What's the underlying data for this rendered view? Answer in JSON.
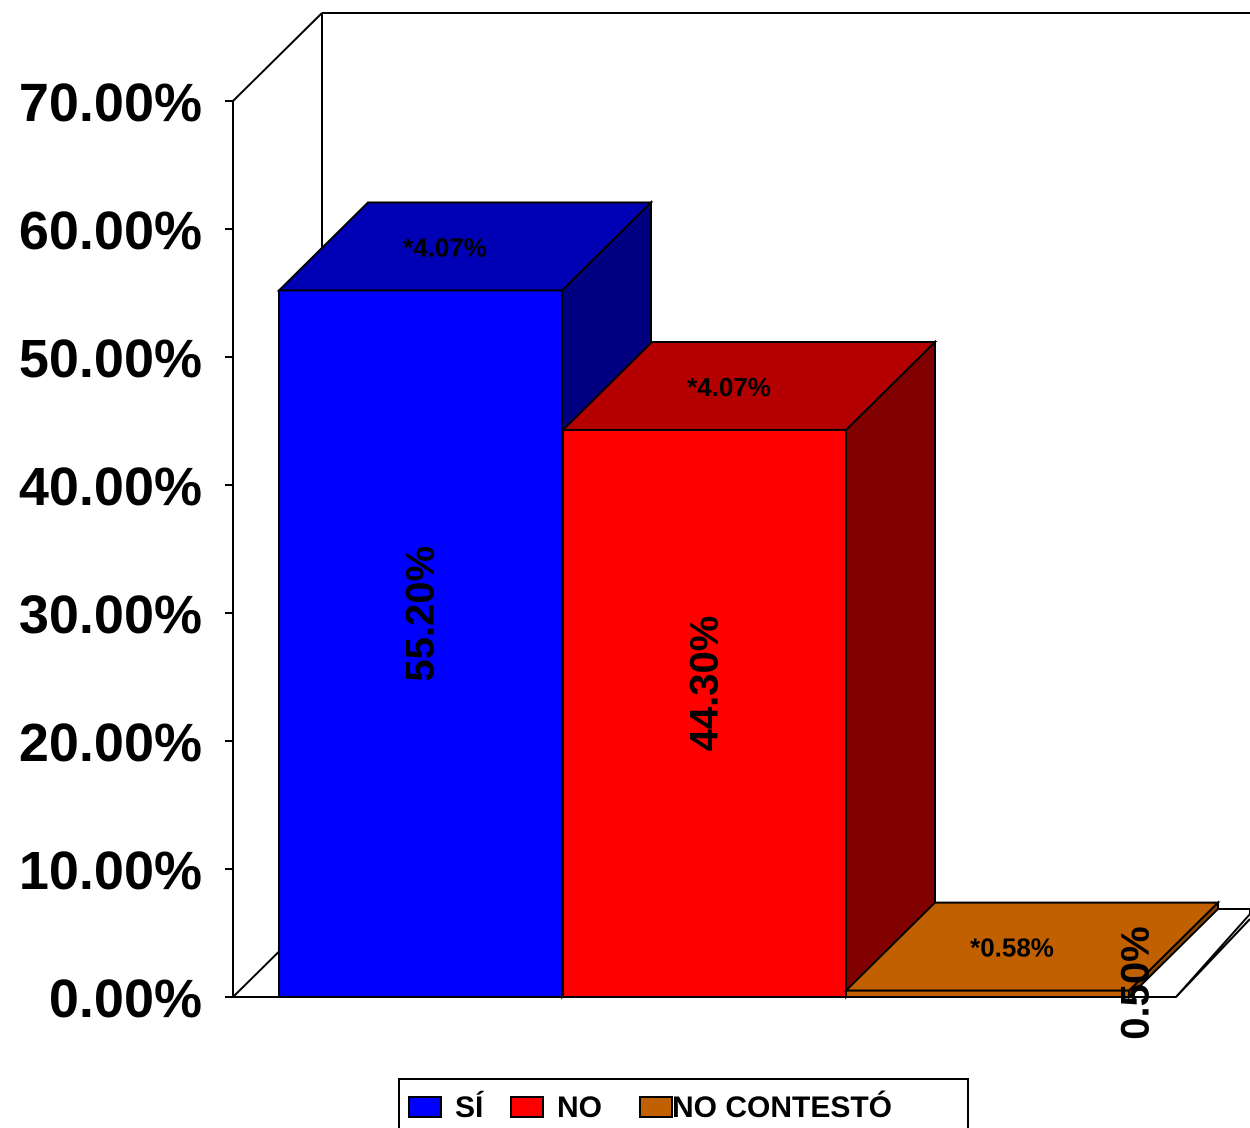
{
  "chart_data": {
    "type": "bar",
    "categories": [
      "SÍ",
      "NO",
      "NO CONTESTÓ"
    ],
    "values": [
      55.2,
      44.3,
      0.5
    ],
    "value_labels": [
      "55.20%",
      "44.30%",
      "0.50%"
    ],
    "error_labels": [
      "*4.07%",
      "*4.07%",
      "*0.58%"
    ],
    "colors": {
      "front": [
        "#0000ff",
        "#ff0000",
        "#c06000"
      ],
      "top": [
        "#0000b4",
        "#b40000",
        "#c06000"
      ],
      "side": [
        "#000080",
        "#800000",
        "#8a4500"
      ]
    },
    "ylim": [
      0,
      70
    ],
    "yticks": [
      0,
      10,
      20,
      30,
      40,
      50,
      60,
      70
    ],
    "ytick_labels": [
      "0.00%",
      "10.00%",
      "20.00%",
      "30.00%",
      "40.00%",
      "50.00%",
      "60.00%",
      "70.00%"
    ],
    "legend": {
      "position": "bottom",
      "entries": [
        "SÍ",
        "NO",
        "NO CONTESTÓ"
      ]
    },
    "style": "3d-clustered-column",
    "grid": false,
    "title": "",
    "xlabel": "",
    "ylabel": ""
  }
}
